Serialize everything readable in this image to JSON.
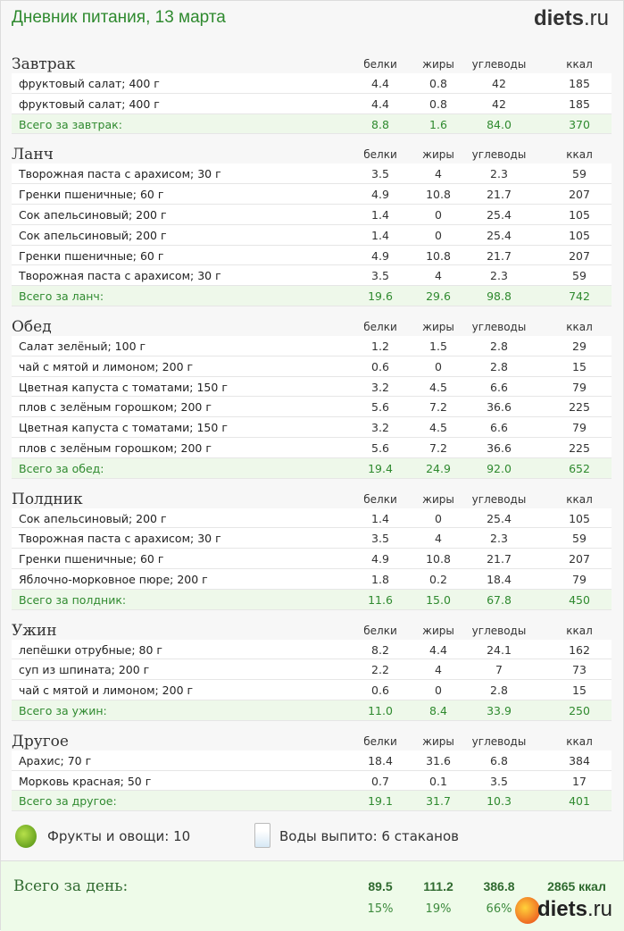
{
  "header": {
    "title": "Дневник питания, 13 марта",
    "logo_main": "diets",
    "logo_tld": ".ru"
  },
  "columns": [
    "белки",
    "жиры",
    "углеводы",
    "ккал"
  ],
  "sections": [
    {
      "name": "Завтрак",
      "items": [
        [
          "фруктовый салат; 400 г",
          "4.4",
          "0.8",
          "42",
          "185"
        ],
        [
          "фруктовый салат; 400 г",
          "4.4",
          "0.8",
          "42",
          "185"
        ]
      ],
      "total": [
        "Всего за завтрак:",
        "8.8",
        "1.6",
        "84.0",
        "370"
      ]
    },
    {
      "name": "Ланч",
      "items": [
        [
          "Творожная паста с арахисом; 30 г",
          "3.5",
          "4",
          "2.3",
          "59"
        ],
        [
          "Гренки пшеничные; 60 г",
          "4.9",
          "10.8",
          "21.7",
          "207"
        ],
        [
          "Сок апельсиновый; 200 г",
          "1.4",
          "0",
          "25.4",
          "105"
        ],
        [
          "Сок апельсиновый; 200 г",
          "1.4",
          "0",
          "25.4",
          "105"
        ],
        [
          "Гренки пшеничные; 60 г",
          "4.9",
          "10.8",
          "21.7",
          "207"
        ],
        [
          "Творожная паста с арахисом; 30 г",
          "3.5",
          "4",
          "2.3",
          "59"
        ]
      ],
      "total": [
        "Всего за ланч:",
        "19.6",
        "29.6",
        "98.8",
        "742"
      ]
    },
    {
      "name": "Обед",
      "items": [
        [
          "Салат зелёный; 100 г",
          "1.2",
          "1.5",
          "2.8",
          "29"
        ],
        [
          "чай с мятой и лимоном; 200 г",
          "0.6",
          "0",
          "2.8",
          "15"
        ],
        [
          "Цветная капуста с томатами; 150 г",
          "3.2",
          "4.5",
          "6.6",
          "79"
        ],
        [
          "плов с зелёным горошком; 200 г",
          "5.6",
          "7.2",
          "36.6",
          "225"
        ],
        [
          "Цветная капуста с томатами; 150 г",
          "3.2",
          "4.5",
          "6.6",
          "79"
        ],
        [
          "плов с зелёным горошком; 200 г",
          "5.6",
          "7.2",
          "36.6",
          "225"
        ]
      ],
      "total": [
        "Всего за обед:",
        "19.4",
        "24.9",
        "92.0",
        "652"
      ]
    },
    {
      "name": "Полдник",
      "items": [
        [
          "Сок апельсиновый; 200 г",
          "1.4",
          "0",
          "25.4",
          "105"
        ],
        [
          "Творожная паста с арахисом; 30 г",
          "3.5",
          "4",
          "2.3",
          "59"
        ],
        [
          "Гренки пшеничные; 60 г",
          "4.9",
          "10.8",
          "21.7",
          "207"
        ],
        [
          "Яблочно-морковное пюре; 200 г",
          "1.8",
          "0.2",
          "18.4",
          "79"
        ]
      ],
      "total": [
        "Всего за полдник:",
        "11.6",
        "15.0",
        "67.8",
        "450"
      ]
    },
    {
      "name": "Ужин",
      "items": [
        [
          "лепёшки отрубные; 80 г",
          "8.2",
          "4.4",
          "24.1",
          "162"
        ],
        [
          "суп из шпината; 200 г",
          "2.2",
          "4",
          "7",
          "73"
        ],
        [
          "чай с мятой и лимоном; 200 г",
          "0.6",
          "0",
          "2.8",
          "15"
        ]
      ],
      "total": [
        "Всего за ужин:",
        "11.0",
        "8.4",
        "33.9",
        "250"
      ]
    },
    {
      "name": "Другое",
      "items": [
        [
          "Арахис; 70 г",
          "18.4",
          "31.6",
          "6.8",
          "384"
        ],
        [
          "Морковь красная; 50 г",
          "0.7",
          "0.1",
          "3.5",
          "17"
        ]
      ],
      "total": [
        "Всего за другое:",
        "19.1",
        "31.7",
        "10.3",
        "401"
      ]
    }
  ],
  "extras": {
    "fruits": "Фрукты и овощи: 10",
    "water": "Воды выпито: 6 стаканов"
  },
  "day": {
    "label": "Всего за день:",
    "values": [
      "89.5",
      "111.2",
      "386.8",
      "2865 ккал"
    ],
    "percents": [
      "15%",
      "19%",
      "66%"
    ],
    "logo_main": "diets",
    "logo_tld": ".ru"
  }
}
